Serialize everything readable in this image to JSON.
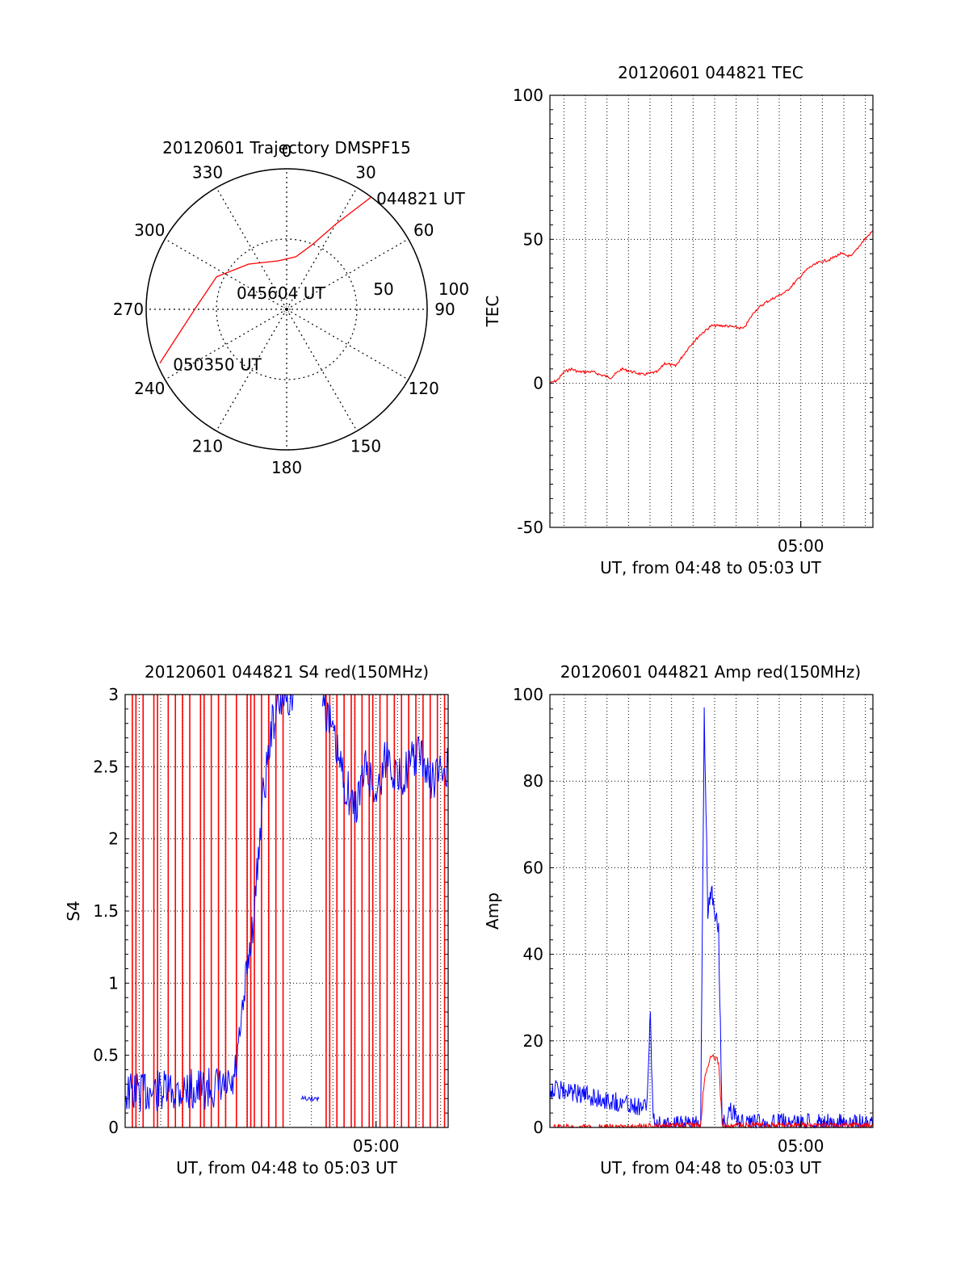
{
  "chart_data": [
    {
      "id": "trajectory",
      "type": "polar",
      "title": "20120601 Trajectory DMSPF15",
      "angle_labels": [
        "0",
        "30",
        "60",
        "90",
        "120",
        "150",
        "180",
        "210",
        "240",
        "270",
        "300",
        "330"
      ],
      "radial_labels": [
        "50",
        "100"
      ],
      "radial_range": [
        0,
        100
      ],
      "grid": true,
      "series": [
        {
          "color": "#ff0000",
          "points": [
            {
              "az": 37,
              "r": 100
            },
            {
              "az": 30,
              "r": 70
            },
            {
              "az": 22,
              "r": 50
            },
            {
              "az": 10,
              "r": 38
            },
            {
              "az": 350,
              "r": 35
            },
            {
              "az": 320,
              "r": 42
            },
            {
              "az": 295,
              "r": 55
            },
            {
              "az": 272,
              "r": 64
            },
            {
              "az": 255,
              "r": 82
            },
            {
              "az": 247,
              "r": 98
            }
          ]
        }
      ],
      "annotations": [
        {
          "text": "044821 UT",
          "az": 38,
          "r": 100
        },
        {
          "text": "045604 UT",
          "az": 310,
          "r": 18
        },
        {
          "text": "050350 UT",
          "az": 244,
          "r": 90
        }
      ]
    },
    {
      "id": "tec",
      "type": "line",
      "title": "20120601 044821 TEC",
      "xlabel": "UT, from 04:48 to 05:03 UT",
      "ylabel": "TEC",
      "xlim": [
        "04:48:21",
        "05:03:21"
      ],
      "ylim": [
        -50,
        100
      ],
      "yticks": [
        -50,
        0,
        50,
        100
      ],
      "xticks": [
        "05:00"
      ],
      "grid": true,
      "series": [
        {
          "color": "#ff0000",
          "x": [
            "04:48:21",
            "04:48:41",
            "04:49:01",
            "04:49:21",
            "04:49:41",
            "04:50:21",
            "04:50:41",
            "04:51:11",
            "04:51:41",
            "04:52:11",
            "04:52:41",
            "04:53:21",
            "04:53:41",
            "04:54:11",
            "04:54:51",
            "04:55:21",
            "04:55:51",
            "04:56:31",
            "04:57:21",
            "04:57:51",
            "04:58:21",
            "04:58:51",
            "04:59:21",
            "04:59:51",
            "05:00:21",
            "05:00:51",
            "05:01:21",
            "05:01:51",
            "05:02:21",
            "05:02:51",
            "05:03:21"
          ],
          "y": [
            0,
            1,
            4,
            5,
            4,
            4,
            3,
            2,
            5,
            4,
            3,
            4,
            7,
            6,
            13,
            17,
            20,
            20,
            19,
            25,
            28,
            30,
            32,
            36,
            40,
            42,
            43,
            45,
            44,
            49,
            53
          ]
        }
      ]
    },
    {
      "id": "s4",
      "type": "line",
      "title": "20120601 044821 S4 red(150MHz)",
      "xlabel": "UT, from 04:48 to 05:03 UT",
      "ylabel": "S4",
      "xlim": [
        "04:48:21",
        "05:03:21"
      ],
      "ylim": [
        0,
        3
      ],
      "yticks": [
        0,
        0.5,
        1,
        1.5,
        2,
        2.5,
        3
      ],
      "xticks": [
        "05:00"
      ],
      "grid": true,
      "series": [
        {
          "color": "#0000ff",
          "segments": [
            {
              "x": [
                "04:48:21",
                "04:49:21",
                "04:50:21",
                "04:51:21",
                "04:52:21",
                "04:53:21",
                "04:53:41",
                "04:54:01",
                "04:54:21",
                "04:54:41",
                "04:55:11",
                "04:55:41",
                "04:56:11"
              ],
              "y": [
                0.24,
                0.25,
                0.25,
                0.26,
                0.27,
                0.27,
                0.6,
                1.1,
                1.5,
                2.2,
                2.8,
                3.0,
                3.0
              ]
            },
            {
              "x": [
                "04:56:31",
                "04:57:01",
                "04:57:21"
              ],
              "y": [
                0.2,
                0.2,
                0.2
              ]
            },
            {
              "x": [
                "04:57:31",
                "04:58:01",
                "04:58:31",
                "04:59:01",
                "04:59:31",
                "05:00:01",
                "05:00:31",
                "05:01:01",
                "05:01:31",
                "05:02:01",
                "05:02:31",
                "05:03:21"
              ],
              "y": [
                3.0,
                2.7,
                2.4,
                2.2,
                2.5,
                2.3,
                2.6,
                2.4,
                2.5,
                2.6,
                2.4,
                2.5
              ]
            }
          ]
        },
        {
          "color": "#ff0000",
          "spikes_x": [
            "04:48:41",
            "04:48:51",
            "04:49:11",
            "04:49:41",
            "04:49:51",
            "04:50:21",
            "04:50:41",
            "04:51:01",
            "04:51:21",
            "04:51:51",
            "04:52:01",
            "04:52:21",
            "04:52:41",
            "04:53:01",
            "04:53:31",
            "04:54:01",
            "04:54:11",
            "04:54:21",
            "04:54:41",
            "04:55:01",
            "04:55:21",
            "04:55:41",
            "04:57:41",
            "04:57:51",
            "04:58:11",
            "04:58:31",
            "04:58:51",
            "04:59:01",
            "04:59:21",
            "04:59:41",
            "04:59:51",
            "05:00:11",
            "05:00:31",
            "05:00:51",
            "05:01:11",
            "05:01:31",
            "05:01:51",
            "05:02:11",
            "05:02:31",
            "05:02:51",
            "05:03:11"
          ]
        }
      ]
    },
    {
      "id": "amp",
      "type": "line",
      "title": "20120601 044821 Amp red(150MHz)",
      "xlabel": "UT, from 04:48 to 05:03 UT",
      "ylabel": "Amp",
      "xlim": [
        "04:48:21",
        "05:03:21"
      ],
      "ylim": [
        0,
        100
      ],
      "yticks": [
        0,
        20,
        40,
        60,
        80,
        100
      ],
      "xticks": [
        "05:00"
      ],
      "grid": true,
      "series": [
        {
          "color": "#0000ff",
          "x": [
            "04:48:21",
            "04:49:21",
            "04:50:21",
            "04:51:21",
            "04:52:21",
            "04:52:51",
            "04:53:01",
            "04:53:06",
            "04:53:11",
            "04:53:21",
            "04:54:21",
            "04:55:21",
            "04:55:31",
            "04:55:41",
            "04:55:51",
            "04:56:11",
            "04:56:21",
            "04:56:31",
            "04:56:41",
            "04:57:21",
            "04:58:21",
            "04:59:21",
            "05:00:21",
            "05:01:21",
            "05:02:21",
            "05:03:21"
          ],
          "y": [
            9,
            8,
            7,
            6,
            5,
            5,
            26,
            8,
            1,
            1,
            0.5,
            0.5,
            95,
            50,
            55,
            45,
            1,
            1,
            4,
            1,
            1,
            1,
            1,
            1,
            1,
            1
          ]
        },
        {
          "color": "#ff0000",
          "x": [
            "04:48:21",
            "04:51:21",
            "04:53:01",
            "04:53:11",
            "04:55:21",
            "04:55:31",
            "04:55:41",
            "04:55:51",
            "04:56:11",
            "04:56:21",
            "05:03:21"
          ],
          "y": [
            0,
            0,
            0.3,
            0.5,
            0.5,
            11,
            14,
            17,
            15,
            0.5,
            0.5
          ]
        }
      ]
    }
  ]
}
